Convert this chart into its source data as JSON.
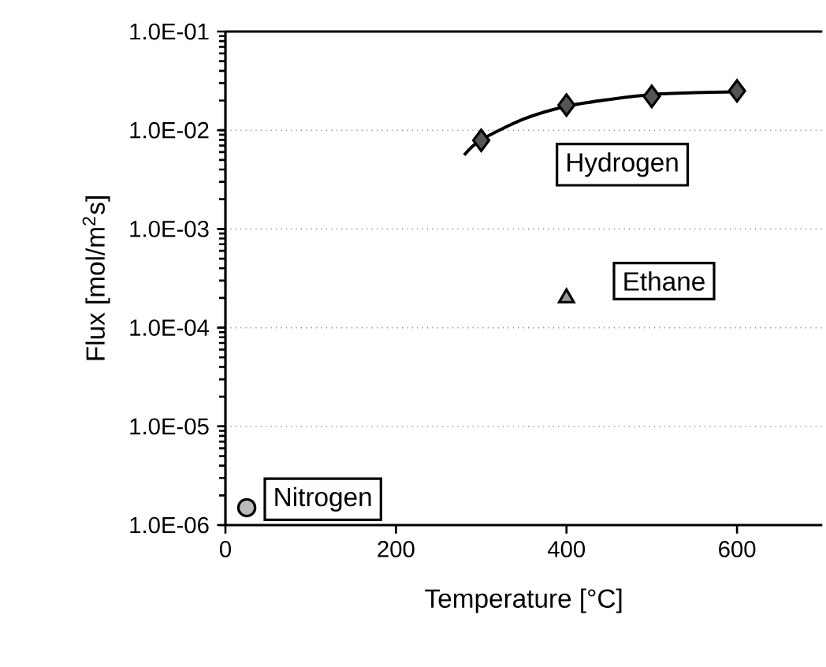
{
  "chart_data": {
    "type": "scatter",
    "xlabel": "Temperature [°C]",
    "ylabel": "Flux [mol/m$^{2}$s]",
    "log": "y",
    "grid": "y",
    "xlim": [
      0,
      700
    ],
    "xticks": [
      0,
      200,
      400,
      600
    ],
    "ylim": [
      1e-06,
      0.1
    ],
    "yticks": [
      {
        "value": 1e-06,
        "label": "1.0E-06"
      },
      {
        "value": 1e-05,
        "label": "1.0E-05"
      },
      {
        "value": 0.0001,
        "label": "1.0E-04"
      },
      {
        "value": 0.001,
        "label": "1.0E-03"
      },
      {
        "value": 0.01,
        "label": "1.0E-02"
      },
      {
        "value": 0.1,
        "label": "1.0E-01"
      }
    ],
    "series": [
      {
        "type": "line",
        "color": "#000000",
        "marker": "none",
        "line_style": "solid",
        "x": [
          280,
          300,
          350,
          400,
          450,
          500,
          550,
          600
        ],
        "values": [
          0.0056,
          0.008,
          0.013,
          0.0175,
          0.0205,
          0.023,
          0.024,
          0.0245
        ]
      },
      {
        "name": "Hydrogen",
        "color": "#555555",
        "marker": "diamond",
        "x": [
          300,
          400,
          500,
          600
        ],
        "values": [
          0.0079,
          0.018,
          0.022,
          0.025
        ]
      },
      {
        "name": "Ethane",
        "color": "#999999",
        "marker": "triangle",
        "x": [
          400
        ],
        "values": [
          0.0002
        ]
      },
      {
        "name": "Nitrogen",
        "color": "#bbbbbb",
        "marker": "circle",
        "x": [
          25
        ],
        "values": [
          1.5e-06
        ]
      }
    ]
  }
}
